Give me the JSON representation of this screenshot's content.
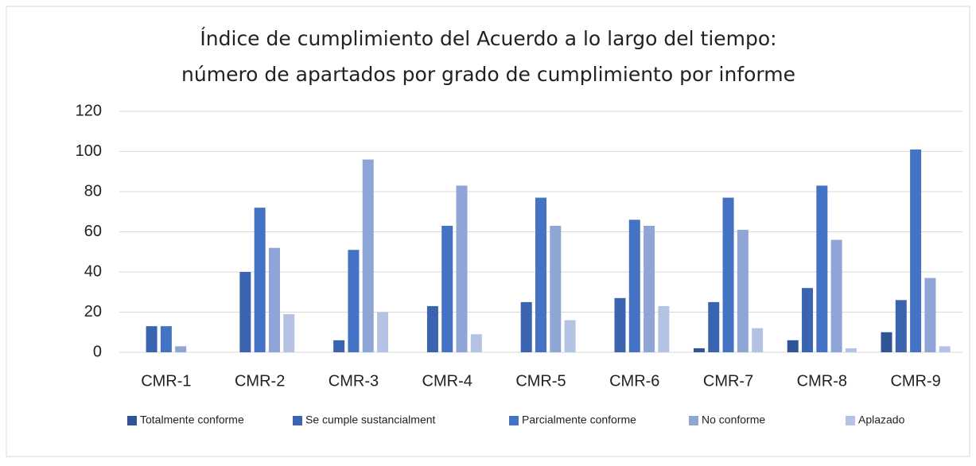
{
  "chart_data": {
    "type": "bar",
    "title": [
      "Índice de cumplimiento del Acuerdo a lo largo del tiempo:",
      "número de apartados por grado de cumplimiento por informe"
    ],
    "categories": [
      "CMR-1",
      "CMR-2",
      "CMR-3",
      "CMR-4",
      "CMR-5",
      "CMR-6",
      "CMR-7",
      "CMR-8",
      "CMR-9"
    ],
    "series": [
      {
        "name": "Totalmente conforme",
        "color": "#2f5597",
        "values": [
          0,
          0,
          0,
          0,
          0,
          0,
          2,
          6,
          10
        ]
      },
      {
        "name": "Se cumple sustancialment",
        "color": "#3a63b0",
        "values": [
          13,
          40,
          6,
          23,
          25,
          27,
          25,
          32,
          26
        ]
      },
      {
        "name": "Parcialmente conforme",
        "color": "#4472c4",
        "values": [
          13,
          72,
          51,
          63,
          77,
          66,
          77,
          83,
          101
        ]
      },
      {
        "name": "No conforme",
        "color": "#8fa5d6",
        "values": [
          3,
          52,
          96,
          83,
          63,
          63,
          61,
          56,
          37
        ]
      },
      {
        "name": "Aplazado",
        "color": "#b4c3e3",
        "values": [
          0,
          19,
          20,
          9,
          16,
          23,
          12,
          2,
          3
        ]
      }
    ],
    "ylim": [
      0,
      120
    ],
    "yticks": [
      0,
      20,
      40,
      60,
      80,
      100,
      120
    ],
    "grid": true
  }
}
